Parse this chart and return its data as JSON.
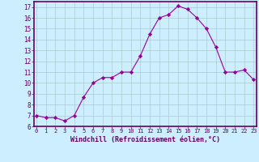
{
  "x": [
    0,
    1,
    2,
    3,
    4,
    5,
    6,
    7,
    8,
    9,
    10,
    11,
    12,
    13,
    14,
    15,
    16,
    17,
    18,
    19,
    20,
    21,
    22,
    23
  ],
  "y": [
    7.0,
    6.8,
    6.8,
    6.5,
    7.0,
    8.7,
    10.0,
    10.5,
    10.5,
    11.0,
    11.0,
    12.5,
    14.5,
    16.0,
    16.3,
    17.1,
    16.8,
    16.0,
    15.0,
    13.3,
    11.0,
    11.0,
    11.2,
    10.3
  ],
  "line_color": "#990099",
  "marker": "D",
  "marker_size": 2.2,
  "bg_color": "#cceeff",
  "grid_color": "#aacccc",
  "xlabel": "Windchill (Refroidissement éolien,°C)",
  "xlabel_color": "#660066",
  "tick_color": "#660066",
  "ylim": [
    6,
    17.5
  ],
  "yticks": [
    6,
    7,
    8,
    9,
    10,
    11,
    12,
    13,
    14,
    15,
    16,
    17
  ],
  "xticks": [
    0,
    1,
    2,
    3,
    4,
    5,
    6,
    7,
    8,
    9,
    10,
    11,
    12,
    13,
    14,
    15,
    16,
    17,
    18,
    19,
    20,
    21,
    22,
    23
  ],
  "xtick_labels": [
    "0",
    "1",
    "2",
    "3",
    "4",
    "5",
    "6",
    "7",
    "8",
    "9",
    "10",
    "11",
    "12",
    "13",
    "14",
    "15",
    "16",
    "17",
    "18",
    "19",
    "20",
    "21",
    "22",
    "23"
  ],
  "axis_bg": "#cceeff",
  "border_color": "#660066",
  "spine_color": "#660066"
}
